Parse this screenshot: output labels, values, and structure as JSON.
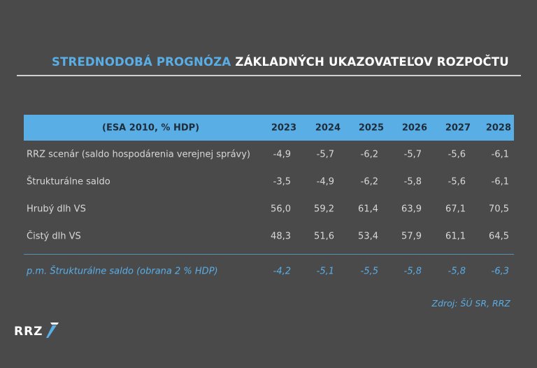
{
  "title": {
    "accent": "STREDNODOBÁ PROGNÓZA",
    "rest": "ZÁKLADNÝCH UKAZOVATEĽOV ROZPOČTU"
  },
  "table": {
    "header_label": "(ESA 2010, % HDP)",
    "years": [
      "2023",
      "2024",
      "2025",
      "2026",
      "2027",
      "2028"
    ],
    "rows": [
      {
        "label": "RRZ scenár (saldo hospodárenia verejnej správy)",
        "values": [
          "-4,9",
          "-5,7",
          "-6,2",
          "-5,7",
          "-5,6",
          "-6,1"
        ]
      },
      {
        "label": "Štrukturálne saldo",
        "values": [
          "-3,5",
          "-4,9",
          "-6,2",
          "-5,8",
          "-5,6",
          "-6,1"
        ]
      },
      {
        "label": "Hrubý dlh VS",
        "values": [
          "56,0",
          "59,2",
          "61,4",
          "63,9",
          "67,1",
          "70,5"
        ]
      },
      {
        "label": "Čistý dlh VS",
        "values": [
          "48,3",
          "51,6",
          "53,4",
          "57,9",
          "61,1",
          "64,5"
        ]
      }
    ],
    "memo_row": {
      "label": "p.m. Štrukturálne saldo (obrana 2 % HDP)",
      "values": [
        "-4,2",
        "-5,1",
        "-5,5",
        "-5,8",
        "-5,8",
        "-6,3"
      ]
    }
  },
  "source": "Zdroj: ŠÚ SR, RRZ",
  "logo": {
    "text": "RRZ",
    "icon": "slash-mark-icon"
  },
  "colors": {
    "accent": "#5aaee6",
    "background": "#4a4a4a",
    "text": "#d8d8d8"
  }
}
